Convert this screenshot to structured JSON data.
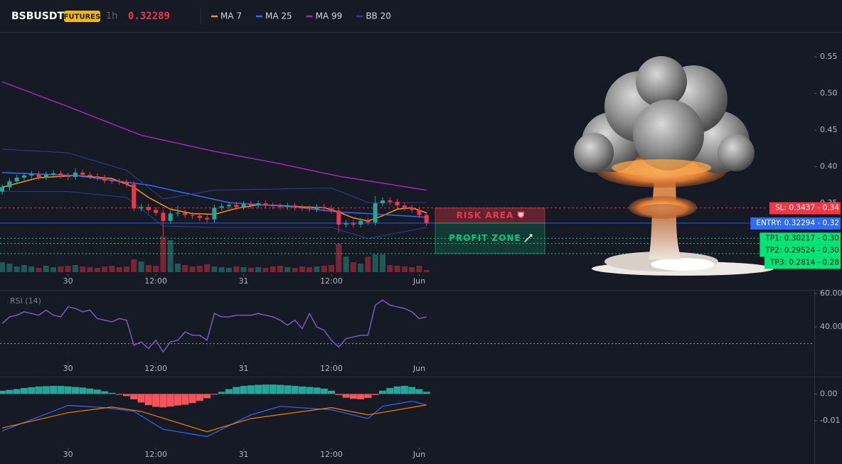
{
  "chart_data": [
    {
      "type": "candlestick",
      "title": "BSBUSDT",
      "badge": "FUTURES",
      "interval": "1h",
      "last_price": 0.32289,
      "up_color": "#26a69a",
      "down_color": "#f23645",
      "price_color": "#f23645",
      "xlim": [
        -0.3,
        111
      ],
      "xticks": [
        {
          "value": 9,
          "label": "30"
        },
        {
          "value": 21,
          "label": "12:00"
        },
        {
          "value": 33,
          "label": "31"
        },
        {
          "value": 45,
          "label": "12:00"
        },
        {
          "value": 57,
          "label": "Jun"
        }
      ],
      "ylim": [
        0.256,
        0.584
      ],
      "yticks": [
        0.35,
        {
          "value": 0.4,
          "label": "0.40"
        },
        0.45,
        {
          "value": 0.5,
          "label": "0.50"
        },
        0.55
      ],
      "candles": {
        "open": [
          0.366,
          0.372,
          0.38,
          0.385,
          0.388,
          0.39,
          0.386,
          0.389,
          0.391,
          0.388,
          0.386,
          0.392,
          0.389,
          0.387,
          0.385,
          0.381,
          0.38,
          0.379,
          0.376,
          0.343,
          0.345,
          0.341,
          0.337,
          0.326,
          0.336,
          0.337,
          0.334,
          0.333,
          0.33,
          0.328,
          0.344,
          0.346,
          0.348,
          0.345,
          0.349,
          0.347,
          0.35,
          0.347,
          0.346,
          0.345,
          0.347,
          0.344,
          0.343,
          0.342,
          0.345,
          0.343,
          0.34,
          0.321,
          0.323,
          0.321,
          0.326,
          0.324,
          0.35,
          0.354,
          0.352,
          0.347,
          0.344,
          0.341,
          0.334
        ],
        "high": [
          0.376,
          0.384,
          0.389,
          0.392,
          0.394,
          0.394,
          0.393,
          0.395,
          0.395,
          0.392,
          0.398,
          0.396,
          0.393,
          0.391,
          0.389,
          0.385,
          0.384,
          0.383,
          0.38,
          0.349,
          0.349,
          0.345,
          0.341,
          0.34,
          0.347,
          0.341,
          0.338,
          0.337,
          0.334,
          0.348,
          0.35,
          0.352,
          0.352,
          0.353,
          0.353,
          0.354,
          0.354,
          0.351,
          0.35,
          0.351,
          0.351,
          0.348,
          0.347,
          0.349,
          0.349,
          0.347,
          0.344,
          0.327,
          0.327,
          0.33,
          0.33,
          0.36,
          0.358,
          0.358,
          0.356,
          0.351,
          0.348,
          0.345,
          0.338
        ],
        "low": [
          0.362,
          0.368,
          0.376,
          0.381,
          0.384,
          0.382,
          0.382,
          0.385,
          0.384,
          0.382,
          0.382,
          0.385,
          0.383,
          0.381,
          0.377,
          0.376,
          0.375,
          0.372,
          0.339,
          0.339,
          0.337,
          0.333,
          0.305,
          0.322,
          0.332,
          0.33,
          0.329,
          0.326,
          0.324,
          0.324,
          0.34,
          0.342,
          0.341,
          0.341,
          0.343,
          0.343,
          0.343,
          0.342,
          0.341,
          0.341,
          0.34,
          0.339,
          0.338,
          0.338,
          0.339,
          0.336,
          0.31,
          0.317,
          0.317,
          0.317,
          0.32,
          0.32,
          0.346,
          0.348,
          0.343,
          0.34,
          0.337,
          0.33,
          0.319
        ],
        "close": [
          0.372,
          0.38,
          0.385,
          0.388,
          0.39,
          0.386,
          0.389,
          0.391,
          0.388,
          0.386,
          0.392,
          0.389,
          0.387,
          0.385,
          0.381,
          0.38,
          0.379,
          0.376,
          0.343,
          0.345,
          0.341,
          0.337,
          0.326,
          0.336,
          0.337,
          0.334,
          0.333,
          0.33,
          0.328,
          0.344,
          0.346,
          0.348,
          0.345,
          0.349,
          0.347,
          0.35,
          0.347,
          0.346,
          0.345,
          0.347,
          0.344,
          0.343,
          0.342,
          0.345,
          0.343,
          0.34,
          0.321,
          0.323,
          0.321,
          0.326,
          0.324,
          0.35,
          0.354,
          0.352,
          0.347,
          0.344,
          0.341,
          0.334,
          0.3229
        ],
        "volume": [
          14,
          12,
          8,
          10,
          8,
          6,
          9,
          7,
          8,
          9,
          10,
          8,
          7,
          6,
          8,
          9,
          7,
          8,
          18,
          15,
          10,
          9,
          50,
          45,
          12,
          10,
          8,
          9,
          11,
          8,
          7,
          6,
          8,
          7,
          6,
          7,
          6,
          8,
          9,
          7,
          6,
          8,
          7,
          8,
          9,
          10,
          40,
          22,
          14,
          12,
          22,
          25,
          25,
          10,
          9,
          8,
          7,
          9,
          3
        ]
      },
      "volume_lim": [
        0,
        100
      ],
      "series": [
        {
          "name": "MA 7",
          "color": "#f7931a",
          "x": [
            0,
            5,
            10,
            15,
            18,
            20,
            23,
            26,
            29,
            32,
            35,
            38,
            41,
            44,
            46,
            48,
            50,
            52,
            54,
            56,
            58
          ],
          "values": [
            0.372,
            0.385,
            0.388,
            0.384,
            0.372,
            0.358,
            0.342,
            0.336,
            0.335,
            0.343,
            0.348,
            0.347,
            0.345,
            0.344,
            0.338,
            0.33,
            0.326,
            0.333,
            0.342,
            0.344,
            0.337
          ]
        },
        {
          "name": "MA 25",
          "color": "#2f6bff",
          "x": [
            0,
            10,
            20,
            31,
            40,
            46,
            50,
            58
          ],
          "values": [
            0.392,
            0.388,
            0.375,
            0.351,
            0.345,
            0.338,
            0.336,
            0.331
          ]
        },
        {
          "name": "MA 99",
          "color": "#a327b8",
          "x": [
            0,
            9,
            19,
            29,
            38,
            46,
            58
          ],
          "values": [
            0.516,
            0.482,
            0.443,
            0.421,
            0.404,
            0.387,
            0.368
          ]
        },
        {
          "name": "BB 20",
          "color": "#2b3f94",
          "x": [
            0,
            9,
            17,
            22,
            29,
            45,
            50,
            58
          ],
          "values": [
            0.424,
            0.419,
            0.395,
            0.356,
            0.368,
            0.371,
            0.351,
            0.351
          ],
          "lower": [
            0.366,
            0.366,
            0.358,
            0.319,
            0.317,
            0.317,
            0.302,
            0.317
          ]
        }
      ],
      "levels": [
        {
          "label": "SL: 0.3437 - 0.34",
          "value": 0.3437,
          "color": "#f23645"
        },
        {
          "label": "ENTRY: 0.32294 - 0.32",
          "value": 0.32294,
          "color": "#2f6bff"
        },
        {
          "label": "TP1: 0.30217 - 0.30",
          "value": 0.30217,
          "color": "#00e676"
        },
        {
          "label": "TP2: 0.29524 - 0.30",
          "value": 0.29524,
          "color": "#00e676"
        },
        {
          "label": "TP3: 0.2814 - 0.28",
          "value": 0.2814,
          "color": "#00e676"
        }
      ],
      "zones": [
        {
          "label": "RISK AREA",
          "from": 0.3437,
          "to": 0.32294,
          "color": "#f23645"
        },
        {
          "label": "PROFIT ZONE",
          "from": 0.32294,
          "to": 0.2814,
          "color": "#00c97a"
        }
      ]
    },
    {
      "type": "line",
      "title": "RSI (14)",
      "xlim": [
        -0.3,
        111
      ],
      "xticks": [
        {
          "value": 9,
          "label": "30"
        },
        {
          "value": 21,
          "label": "12:00"
        },
        {
          "value": 33,
          "label": "31"
        },
        {
          "value": 45,
          "label": "12:00"
        },
        {
          "value": 57,
          "label": "Jun"
        }
      ],
      "ylim": [
        20.9,
        62.1
      ],
      "yticks": [
        {
          "value": 60,
          "label": "60.00"
        },
        {
          "value": 40,
          "label": "40.00"
        }
      ],
      "hline": 30,
      "series": [
        {
          "color": "#7e57c2",
          "values": [
            42,
            46,
            47,
            49,
            48,
            47,
            50,
            47,
            46,
            52,
            51,
            49,
            50,
            45,
            44,
            43,
            45,
            44,
            29,
            31,
            27,
            32,
            25,
            31,
            32,
            37,
            35,
            35,
            32,
            48,
            46,
            46,
            47,
            47,
            47,
            48,
            47,
            46,
            44,
            41,
            44,
            39,
            48,
            40,
            38,
            32,
            28,
            33,
            34,
            35,
            35,
            53,
            56,
            53,
            52,
            51,
            49,
            45,
            46
          ]
        }
      ]
    },
    {
      "type": "macd",
      "xlim": [
        -0.3,
        111
      ],
      "xticks": [
        {
          "value": 9,
          "label": "30"
        },
        {
          "value": 21,
          "label": "12:00"
        },
        {
          "value": 33,
          "label": "31"
        },
        {
          "value": 45,
          "label": "12:00"
        },
        {
          "value": 57,
          "label": "Jun"
        }
      ],
      "ylim": [
        -0.0195,
        0.0062
      ],
      "yticks": [
        {
          "value": 0,
          "label": "0.00"
        },
        -0.01
      ],
      "histogram": {
        "up_color": "#26a69a",
        "down_color": "#f5545a",
        "values": [
          0.0012,
          0.0015,
          0.0018,
          0.0022,
          0.0025,
          0.0028,
          0.0029,
          0.003,
          0.003,
          0.0028,
          0.0026,
          0.0024,
          0.002,
          0.0016,
          0.001,
          0.0004,
          -0.0003,
          -0.0008,
          -0.002,
          -0.0032,
          -0.0042,
          -0.0048,
          -0.005,
          -0.0047,
          -0.0043,
          -0.004,
          -0.0034,
          -0.0026,
          -0.0016,
          -0.0003,
          0.0008,
          0.0018,
          0.0026,
          0.003,
          0.0032,
          0.0034,
          0.0035,
          0.0035,
          0.0034,
          0.0032,
          0.003,
          0.0028,
          0.0026,
          0.0024,
          0.002,
          0.0012,
          -0.0004,
          -0.0014,
          -0.0018,
          -0.002,
          -0.0015,
          -0.0004,
          0.0012,
          0.0022,
          0.0028,
          0.003,
          0.0026,
          0.0018,
          0.0008
        ]
      },
      "series": [
        {
          "color": "#2f6bff",
          "x": [
            0,
            9,
            14,
            18,
            22,
            28,
            34,
            38,
            45,
            50,
            52,
            56,
            58
          ],
          "values": [
            -0.0138,
            -0.0043,
            -0.0051,
            -0.0065,
            -0.0132,
            -0.0159,
            -0.0078,
            -0.0046,
            -0.0059,
            -0.0092,
            -0.0046,
            -0.0027,
            -0.0041
          ]
        },
        {
          "color": "#f57c00",
          "x": [
            0,
            9,
            15,
            19,
            28,
            34,
            45,
            50,
            58
          ],
          "values": [
            -0.0127,
            -0.007,
            -0.0049,
            -0.0065,
            -0.0141,
            -0.0092,
            -0.0051,
            -0.0078,
            -0.0041
          ]
        }
      ]
    }
  ]
}
